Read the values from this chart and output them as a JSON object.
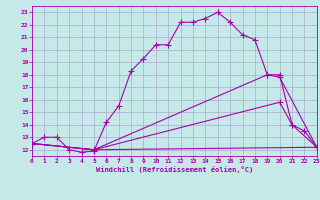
{
  "xlabel": "Windchill (Refroidissement éolien,°C)",
  "xlim": [
    0,
    23
  ],
  "ylim": [
    11.5,
    23.5
  ],
  "xticks": [
    0,
    1,
    2,
    3,
    4,
    5,
    6,
    7,
    8,
    9,
    10,
    11,
    12,
    13,
    14,
    15,
    16,
    17,
    18,
    19,
    20,
    21,
    22,
    23
  ],
  "yticks": [
    12,
    13,
    14,
    15,
    16,
    17,
    18,
    19,
    20,
    21,
    22,
    23
  ],
  "bg_color": "#c5e8e8",
  "grid_color": "#aaaacc",
  "line_color": "#aa00aa",
  "line_width": 0.8,
  "marker": "+",
  "markersize": 4,
  "markeredgewidth": 0.8,
  "lines": [
    {
      "x": [
        0,
        1,
        2,
        3,
        4,
        5,
        6,
        7,
        8,
        9,
        10,
        11,
        12,
        13,
        14,
        15,
        16,
        17,
        18,
        19,
        20,
        21,
        22,
        23
      ],
      "y": [
        12.5,
        13.0,
        13.0,
        12.0,
        11.8,
        11.9,
        14.2,
        15.5,
        18.3,
        19.3,
        20.4,
        20.4,
        22.2,
        22.2,
        22.5,
        23.0,
        22.2,
        21.2,
        20.8,
        18.0,
        18.0,
        14.0,
        13.5,
        12.2
      ]
    },
    {
      "x": [
        0,
        5,
        19,
        20,
        23
      ],
      "y": [
        12.5,
        12.0,
        18.0,
        17.8,
        12.2
      ]
    },
    {
      "x": [
        0,
        5,
        20,
        21,
        23
      ],
      "y": [
        12.5,
        12.0,
        15.8,
        14.0,
        12.2
      ]
    },
    {
      "x": [
        0,
        5,
        23
      ],
      "y": [
        12.5,
        12.0,
        12.2
      ]
    }
  ]
}
